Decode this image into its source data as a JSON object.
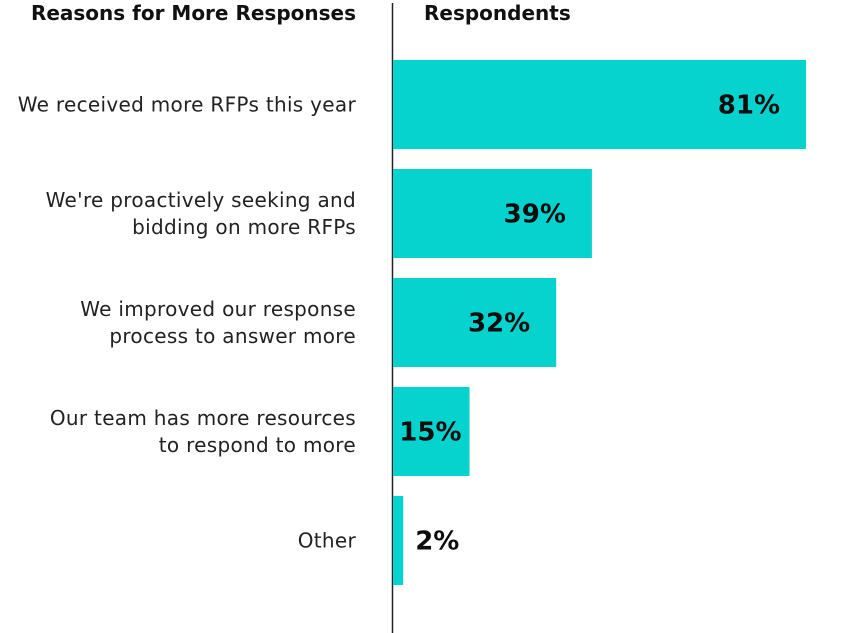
{
  "colors": {
    "bar": "#06d3ce",
    "axis": "#222222",
    "label_text": "#222222",
    "value_text": "#0d0d0d"
  },
  "chart_data": {
    "type": "bar",
    "orientation": "horizontal",
    "column_headers": {
      "categories": "Reasons for More Responses",
      "values": "Respondents"
    },
    "categories": [
      [
        "We received more RFPs this year"
      ],
      [
        "We're proactively seeking and",
        "bidding on more RFPs"
      ],
      [
        "We improved our response",
        "process to answer more"
      ],
      [
        "Our team has more resources",
        "to respond to more"
      ],
      [
        "Other"
      ]
    ],
    "values": [
      81,
      39,
      32,
      15,
      2
    ],
    "value_labels": [
      "81%",
      "39%",
      "32%",
      "15%",
      "2%"
    ],
    "unit": "%",
    "xlim": [
      0,
      81
    ],
    "grid": false,
    "legend": "none"
  }
}
